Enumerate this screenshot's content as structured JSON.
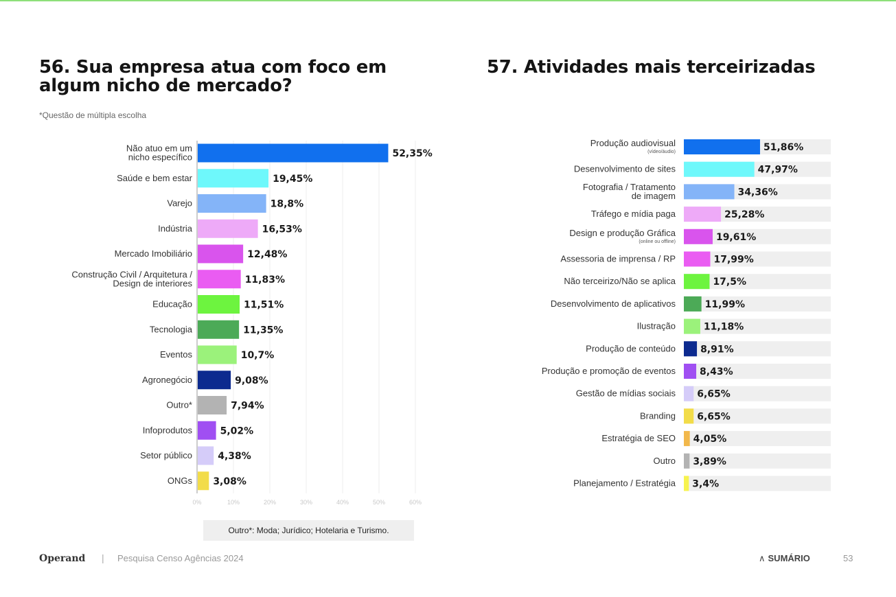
{
  "left": {
    "title": "56. Sua empresa atua com foco em algum nicho de mercado?",
    "subtitle": "*Questão de múltipla escolha",
    "note": "Outro*: Moda; Jurídico; Hotelaria e Turismo."
  },
  "right": {
    "title": "57. Atividades mais terceirizadas"
  },
  "footer": {
    "logo": "Operand",
    "separator": "|",
    "text": "Pesquisa Censo Agências 2024",
    "sumario": "SUMÁRIO",
    "page": "53"
  },
  "chart_data": [
    {
      "type": "bar",
      "orientation": "horizontal",
      "title": "56. Sua empresa atua com foco em algum nicho de mercado?",
      "xlim": [
        0,
        60
      ],
      "xticks": [
        "0%",
        "10%",
        "20%",
        "30%",
        "40%",
        "50%",
        "60%"
      ],
      "grid": true,
      "categories": [
        "Não atuo em um nicho específico",
        "Saúde e bem estar",
        "Varejo",
        "Indústria",
        "Mercado Imobiliário",
        "Construção Civil / Arquitetura / Design de interiores",
        "Educação",
        "Tecnologia",
        "Eventos",
        "Agronegócio",
        "Outro*",
        "Infoprodutos",
        "Setor público",
        "ONGs"
      ],
      "label_lines": [
        [
          "Não atuo em um",
          "nicho específico"
        ],
        [
          "Saúde e bem estar"
        ],
        [
          "Varejo"
        ],
        [
          "Indústria"
        ],
        [
          "Mercado Imobiliário"
        ],
        [
          "Construção Civil / Arquitetura /",
          "Design de interiores"
        ],
        [
          "Educação"
        ],
        [
          "Tecnologia"
        ],
        [
          "Eventos"
        ],
        [
          "Agronegócio"
        ],
        [
          "Outro*"
        ],
        [
          "Infoprodutos"
        ],
        [
          "Setor público"
        ],
        [
          "ONGs"
        ]
      ],
      "values": [
        52.35,
        19.45,
        18.8,
        16.53,
        12.48,
        11.83,
        11.51,
        11.35,
        10.7,
        9.08,
        7.94,
        5.02,
        4.38,
        3.08
      ],
      "value_labels": [
        "52,35%",
        "19,45%",
        "18,8%",
        "16,53%",
        "12,48%",
        "11,83%",
        "11,51%",
        "11,35%",
        "10,7%",
        "9,08%",
        "7,94%",
        "5,02%",
        "4,38%",
        "3,08%"
      ],
      "colors": [
        "#1170ee",
        "#6ef8fb",
        "#84b4f8",
        "#eeaaf8",
        "#d954ed",
        "#ea5cf2",
        "#6df43f",
        "#4caa57",
        "#9bf27b",
        "#0c2a8f",
        "#b3b3b3",
        "#a04ff2",
        "#d5ccf9",
        "#f2dc49"
      ]
    },
    {
      "type": "bar",
      "orientation": "horizontal",
      "title": "57. Atividades mais terceirizadas",
      "xlim": [
        0,
        100
      ],
      "background_track": true,
      "categories": [
        "Produção audiovisual (vídeo/áudio)",
        "Desenvolvimento de sites",
        "Fotografia / Tratamento de imagem",
        "Tráfego e mídia paga",
        "Design e produção Gráfica (online ou offline)",
        "Assessoria de imprensa / RP",
        "Não terceirizo/Não se aplica",
        "Desenvolvimento de aplicativos",
        "Ilustração",
        "Produção de conteúdo",
        "Produção e promoção de eventos",
        "Gestão de mídias sociais",
        "Branding",
        "Estratégia de SEO",
        "Outro",
        "Planejamento / Estratégia"
      ],
      "label_lines": [
        [
          "Produção audiovisual"
        ],
        [
          "Desenvolvimento de sites"
        ],
        [
          "Fotografia / Tratamento",
          "de imagem"
        ],
        [
          "Tráfego e mídia paga"
        ],
        [
          "Design e produção Gráfica"
        ],
        [
          "Assessoria de imprensa / RP"
        ],
        [
          "Não terceirizo/Não se aplica"
        ],
        [
          "Desenvolvimento de aplicativos"
        ],
        [
          "Ilustração"
        ],
        [
          "Produção de conteúdo"
        ],
        [
          "Produção e promoção de eventos"
        ],
        [
          "Gestão de mídias sociais"
        ],
        [
          "Branding"
        ],
        [
          "Estratégia de SEO"
        ],
        [
          "Outro"
        ],
        [
          "Planejamento / Estratégia"
        ]
      ],
      "sublabels": [
        "(vídeo/áudio)",
        "",
        "",
        "",
        "(online ou offline)",
        "",
        "",
        "",
        "",
        "",
        "",
        "",
        "",
        "",
        "",
        ""
      ],
      "values": [
        51.86,
        47.97,
        34.36,
        25.28,
        19.61,
        17.99,
        17.5,
        11.99,
        11.18,
        8.91,
        8.43,
        6.65,
        6.65,
        4.05,
        3.89,
        3.4
      ],
      "value_labels": [
        "51,86%",
        "47,97%",
        "34,36%",
        "25,28%",
        "19,61%",
        "17,99%",
        "17,5%",
        "11,99%",
        "11,18%",
        "8,91%",
        "8,43%",
        "6,65%",
        "6,65%",
        "4,05%",
        "3,89%",
        "3,4%"
      ],
      "colors": [
        "#1170ee",
        "#6ef8fb",
        "#84b4f8",
        "#eeaaf8",
        "#d954ed",
        "#ea5cf2",
        "#6df43f",
        "#4caa57",
        "#9bf27b",
        "#0c2a8f",
        "#a04ff2",
        "#d5ccf9",
        "#f2dc49",
        "#f2b84b",
        "#b3b3b3",
        "#f7f34f"
      ]
    }
  ]
}
